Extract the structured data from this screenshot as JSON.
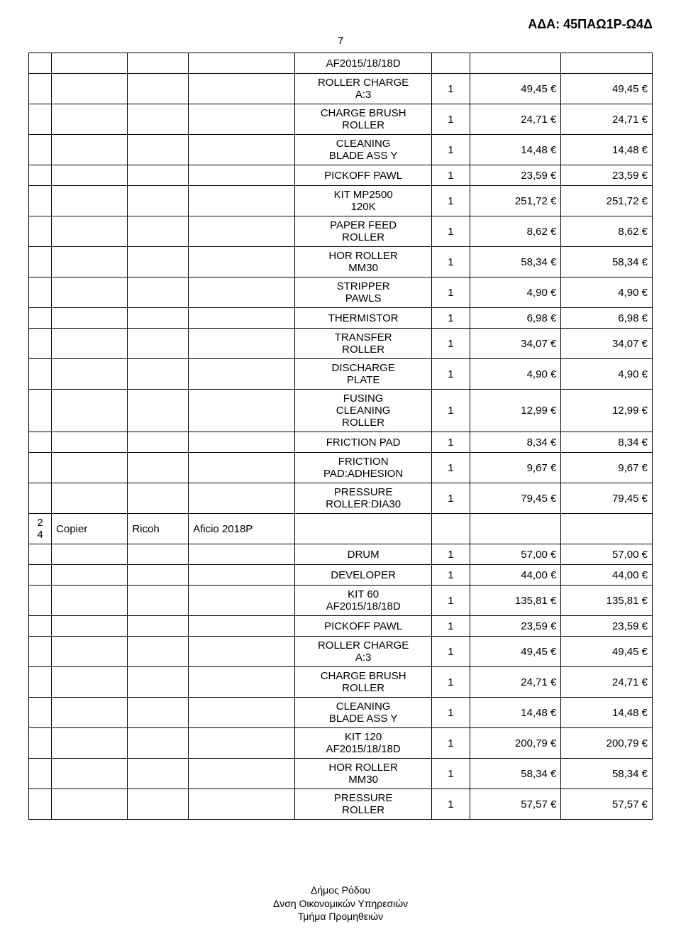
{
  "header": {
    "ada": "ΑΔΑ: 45ΠΑΩ1Ρ-Ω4Δ",
    "page_number": "7"
  },
  "table": {
    "rows": [
      {
        "c1": "",
        "c2": "",
        "c3": "",
        "c4": "",
        "desc": "AF2015/18/18D",
        "qty": "",
        "unit": "",
        "total": ""
      },
      {
        "c1": "",
        "c2": "",
        "c3": "",
        "c4": "",
        "desc": "ROLLER CHARGE\nA:3",
        "qty": "1",
        "unit": "49,45 €",
        "total": "49,45 €"
      },
      {
        "c1": "",
        "c2": "",
        "c3": "",
        "c4": "",
        "desc": "CHARGE BRUSH\nROLLER",
        "qty": "1",
        "unit": "24,71 €",
        "total": "24,71 €"
      },
      {
        "c1": "",
        "c2": "",
        "c3": "",
        "c4": "",
        "desc": "CLEANING\nBLADE ASS Y",
        "qty": "1",
        "unit": "14,48 €",
        "total": "14,48 €"
      },
      {
        "c1": "",
        "c2": "",
        "c3": "",
        "c4": "",
        "desc": "PICKOFF PAWL",
        "qty": "1",
        "unit": "23,59 €",
        "total": "23,59 €"
      },
      {
        "c1": "",
        "c2": "",
        "c3": "",
        "c4": "",
        "desc": "KIT MP2500\n120K",
        "qty": "1",
        "unit": "251,72 €",
        "total": "251,72 €"
      },
      {
        "c1": "",
        "c2": "",
        "c3": "",
        "c4": "",
        "desc": "PAPER FEED\nROLLER",
        "qty": "1",
        "unit": "8,62 €",
        "total": "8,62 €"
      },
      {
        "c1": "",
        "c2": "",
        "c3": "",
        "c4": "",
        "desc": "HOR ROLLER\nMM30",
        "qty": "1",
        "unit": "58,34 €",
        "total": "58,34 €"
      },
      {
        "c1": "",
        "c2": "",
        "c3": "",
        "c4": "",
        "desc": "STRIPPER\nPAWLS",
        "qty": "1",
        "unit": "4,90 €",
        "total": "4,90 €"
      },
      {
        "c1": "",
        "c2": "",
        "c3": "",
        "c4": "",
        "desc": "THERMISTOR",
        "qty": "1",
        "unit": "6,98 €",
        "total": "6,98 €"
      },
      {
        "c1": "",
        "c2": "",
        "c3": "",
        "c4": "",
        "desc": "TRANSFER\nROLLER",
        "qty": "1",
        "unit": "34,07 €",
        "total": "34,07 €"
      },
      {
        "c1": "",
        "c2": "",
        "c3": "",
        "c4": "",
        "desc": "DISCHARGE\nPLATE",
        "qty": "1",
        "unit": "4,90 €",
        "total": "4,90 €"
      },
      {
        "c1": "",
        "c2": "",
        "c3": "",
        "c4": "",
        "desc": "FUSING\nCLEANING\nROLLER",
        "qty": "1",
        "unit": "12,99 €",
        "total": "12,99 €"
      },
      {
        "c1": "",
        "c2": "",
        "c3": "",
        "c4": "",
        "desc": "FRICTION PAD",
        "qty": "1",
        "unit": "8,34 €",
        "total": "8,34 €"
      },
      {
        "c1": "",
        "c2": "",
        "c3": "",
        "c4": "",
        "desc": "FRICTION\nPAD:ADHESION",
        "qty": "1",
        "unit": "9,67 €",
        "total": "9,67 €"
      },
      {
        "c1": "",
        "c2": "",
        "c3": "",
        "c4": "",
        "desc": "PRESSURE\nROLLER:DIA30",
        "qty": "1",
        "unit": "79,45 €",
        "total": "79,45 €"
      },
      {
        "c1": "2\n4",
        "c2": "Copier",
        "c3": "Ricoh",
        "c4": "Aficio 2018P",
        "desc": "",
        "qty": "",
        "unit": "",
        "total": ""
      },
      {
        "c1": "",
        "c2": "",
        "c3": "",
        "c4": "",
        "desc": "DRUM",
        "qty": "1",
        "unit": "57,00 €",
        "total": "57,00 €"
      },
      {
        "c1": "",
        "c2": "",
        "c3": "",
        "c4": "",
        "desc": "DEVELOPER",
        "qty": "1",
        "unit": "44,00 €",
        "total": "44,00 €"
      },
      {
        "c1": "",
        "c2": "",
        "c3": "",
        "c4": "",
        "desc": "KIT 60\nAF2015/18/18D",
        "qty": "1",
        "unit": "135,81 €",
        "total": "135,81 €"
      },
      {
        "c1": "",
        "c2": "",
        "c3": "",
        "c4": "",
        "desc": "PICKOFF PAWL",
        "qty": "1",
        "unit": "23,59 €",
        "total": "23,59 €"
      },
      {
        "c1": "",
        "c2": "",
        "c3": "",
        "c4": "",
        "desc": "ROLLER CHARGE\nA:3",
        "qty": "1",
        "unit": "49,45 €",
        "total": "49,45 €"
      },
      {
        "c1": "",
        "c2": "",
        "c3": "",
        "c4": "",
        "desc": "CHARGE BRUSH\nROLLER",
        "qty": "1",
        "unit": "24,71 €",
        "total": "24,71 €"
      },
      {
        "c1": "",
        "c2": "",
        "c3": "",
        "c4": "",
        "desc": "CLEANING\nBLADE ASS Y",
        "qty": "1",
        "unit": "14,48 €",
        "total": "14,48 €"
      },
      {
        "c1": "",
        "c2": "",
        "c3": "",
        "c4": "",
        "desc": "KIT 120\nAF2015/18/18D",
        "qty": "1",
        "unit": "200,79 €",
        "total": "200,79 €"
      },
      {
        "c1": "",
        "c2": "",
        "c3": "",
        "c4": "",
        "desc": "HOR ROLLER\nMM30",
        "qty": "1",
        "unit": "58,34 €",
        "total": "58,34 €"
      },
      {
        "c1": "",
        "c2": "",
        "c3": "",
        "c4": "",
        "desc": "PRESSURE\nROLLER",
        "qty": "1",
        "unit": "57,57 €",
        "total": "57,57 €"
      }
    ]
  },
  "footer": {
    "line1": "Δήμος Ρόδου",
    "line2": "Δνση Οικονομικών Υπηρεσιών",
    "line3": "Τμήμα Προμηθειών"
  }
}
